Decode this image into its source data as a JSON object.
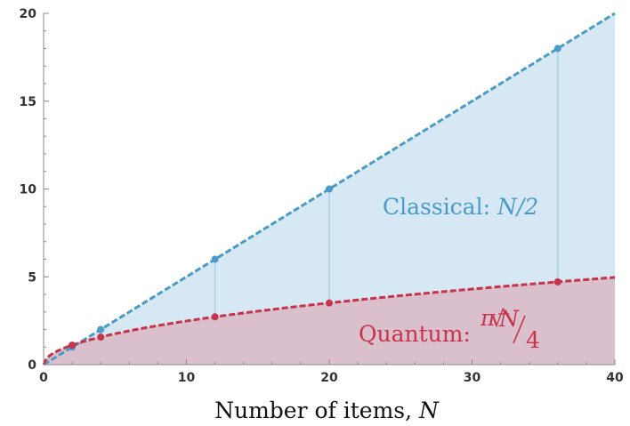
{
  "chart_data": {
    "type": "line",
    "xlabel": "Number of items,",
    "xlabel_var": "N",
    "xlim": [
      0,
      40
    ],
    "ylim": [
      0,
      20
    ],
    "xticks": [
      "0",
      "10",
      "20",
      "30",
      "40"
    ],
    "yticks": [
      "0",
      "5",
      "10",
      "15",
      "20"
    ],
    "grid": false,
    "colors": {
      "classical": "#4a9bc8",
      "quantum": "#c8334a",
      "classical_fill": "#d6e8f3",
      "quantum_fill": "#d9c0cc"
    },
    "series": [
      {
        "key": "classical",
        "formula": "N/2",
        "curve_line_style": "dashed",
        "points": [
          {
            "x": 2,
            "y": 1
          },
          {
            "x": 4,
            "y": 2
          },
          {
            "x": 12,
            "y": 6
          },
          {
            "x": 20,
            "y": 10
          },
          {
            "x": 36,
            "y": 18
          }
        ]
      },
      {
        "key": "quantum",
        "formula": "pi*sqrt(N)/4",
        "curve_line_style": "dashed",
        "points": [
          {
            "x": 2,
            "y": 1.11
          },
          {
            "x": 4,
            "y": 1.57
          },
          {
            "x": 12,
            "y": 2.72
          },
          {
            "x": 20,
            "y": 3.51
          },
          {
            "x": 36,
            "y": 4.71
          }
        ]
      }
    ],
    "annotations": {
      "classical": {
        "text": "Classical: ",
        "formula_text": "N/2"
      },
      "quantum": {
        "text": "Quantum: ",
        "pi": "π",
        "sqrt_arg": "N",
        "denominator": "4"
      }
    }
  }
}
